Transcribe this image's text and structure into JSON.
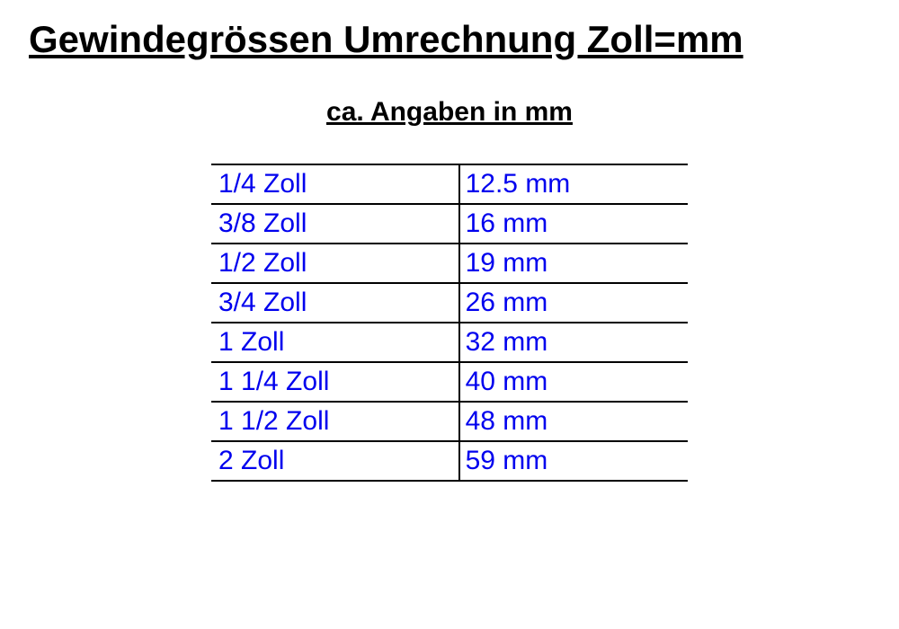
{
  "title": "Gewindegrössen Umrechnung Zoll=mm",
  "subtitle": "ca. Angaben in mm",
  "table": {
    "type": "table",
    "columns": [
      "zoll",
      "mm"
    ],
    "text_color": "#0000ee",
    "border_color": "#000000",
    "border_width": 2,
    "font_size": 30,
    "rows": [
      {
        "zoll": "1/4 Zoll",
        "mm": "12.5 mm"
      },
      {
        "zoll": "3/8 Zoll",
        "mm": "16 mm"
      },
      {
        "zoll": "1/2 Zoll",
        "mm": "19 mm"
      },
      {
        "zoll": "3/4 Zoll",
        "mm": "26 mm"
      },
      {
        "zoll": "1 Zoll",
        "mm": "32 mm"
      },
      {
        "zoll": "1 1/4 Zoll",
        "mm": "40 mm"
      },
      {
        "zoll": "1 1/2 Zoll",
        "mm": "48 mm"
      },
      {
        "zoll": "2 Zoll",
        "mm": "59 mm"
      }
    ]
  },
  "styling": {
    "background_color": "#ffffff",
    "title_color": "#000000",
    "title_fontsize": 42,
    "subtitle_fontsize": 30
  }
}
